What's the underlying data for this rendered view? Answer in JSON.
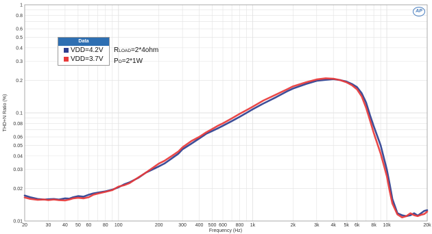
{
  "chart_data": {
    "type": "line",
    "title": "",
    "xlabel": "Frequency (Hz)",
    "ylabel": "THD+N Ratio (%)",
    "x_scale": "log",
    "y_scale": "log",
    "xlim": [
      20,
      20000
    ],
    "ylim": [
      0.01,
      1
    ],
    "grid": true,
    "legend_title": "Data",
    "legend_position": "top-left",
    "x_ticks": [
      {
        "value": 20,
        "label": "20"
      },
      {
        "value": 30,
        "label": "30"
      },
      {
        "value": 40,
        "label": "40"
      },
      {
        "value": 50,
        "label": "50"
      },
      {
        "value": 60,
        "label": "60"
      },
      {
        "value": 80,
        "label": "80"
      },
      {
        "value": 100,
        "label": "100"
      },
      {
        "value": 200,
        "label": "200"
      },
      {
        "value": 300,
        "label": "300"
      },
      {
        "value": 400,
        "label": "400"
      },
      {
        "value": 500,
        "label": "500"
      },
      {
        "value": 600,
        "label": "600"
      },
      {
        "value": 800,
        "label": "800"
      },
      {
        "value": 1000,
        "label": "1k"
      },
      {
        "value": 2000,
        "label": "2k"
      },
      {
        "value": 3000,
        "label": "3k"
      },
      {
        "value": 4000,
        "label": "4k"
      },
      {
        "value": 5000,
        "label": "5k"
      },
      {
        "value": 6000,
        "label": "6k"
      },
      {
        "value": 8000,
        "label": "8k"
      },
      {
        "value": 10000,
        "label": "10k"
      },
      {
        "value": 20000,
        "label": "20k"
      }
    ],
    "y_ticks": [
      {
        "value": 1,
        "label": "1"
      },
      {
        "value": 0.8,
        "label": "0.8"
      },
      {
        "value": 0.6,
        "label": "0.6"
      },
      {
        "value": 0.5,
        "label": "0.5"
      },
      {
        "value": 0.4,
        "label": "0.4"
      },
      {
        "value": 0.3,
        "label": "0.3"
      },
      {
        "value": 0.2,
        "label": "0.2"
      },
      {
        "value": 0.1,
        "label": "0.1"
      },
      {
        "value": 0.08,
        "label": "0.08"
      },
      {
        "value": 0.06,
        "label": "0.06"
      },
      {
        "value": 0.05,
        "label": "0.05"
      },
      {
        "value": 0.04,
        "label": "0.04"
      },
      {
        "value": 0.03,
        "label": "0.03"
      },
      {
        "value": 0.02,
        "label": "0.02"
      },
      {
        "value": 0.01,
        "label": "0.01"
      }
    ],
    "series": [
      {
        "name": "VDD=4.2V",
        "color": "#2e3f8f",
        "x": [
          20,
          22,
          25,
          28,
          30,
          33,
          36,
          40,
          43,
          46,
          50,
          55,
          60,
          65,
          70,
          80,
          90,
          100,
          110,
          120,
          140,
          160,
          180,
          200,
          220,
          250,
          280,
          300,
          350,
          400,
          450,
          500,
          550,
          600,
          700,
          800,
          900,
          1000,
          1200,
          1500,
          1800,
          2000,
          2500,
          3000,
          3500,
          4000,
          4500,
          5000,
          5500,
          6000,
          6500,
          7000,
          7500,
          8000,
          9000,
          10000,
          10500,
          11000,
          12000,
          13000,
          14000,
          15000,
          16000,
          17000,
          18000,
          19000,
          20000
        ],
        "y": [
          0.0172,
          0.0166,
          0.016,
          0.0158,
          0.0159,
          0.016,
          0.0158,
          0.0162,
          0.0161,
          0.0166,
          0.017,
          0.0168,
          0.0175,
          0.018,
          0.0183,
          0.0188,
          0.0195,
          0.0205,
          0.0218,
          0.0227,
          0.025,
          0.028,
          0.03,
          0.032,
          0.034,
          0.038,
          0.042,
          0.046,
          0.052,
          0.058,
          0.064,
          0.068,
          0.072,
          0.076,
          0.084,
          0.092,
          0.1,
          0.108,
          0.122,
          0.14,
          0.158,
          0.168,
          0.185,
          0.198,
          0.202,
          0.205,
          0.201,
          0.195,
          0.185,
          0.173,
          0.152,
          0.125,
          0.095,
          0.075,
          0.05,
          0.03,
          0.022,
          0.016,
          0.0118,
          0.0113,
          0.0111,
          0.0113,
          0.0118,
          0.0112,
          0.0118,
          0.0124,
          0.0126
        ]
      },
      {
        "name": "VDD=3.7V",
        "color": "#e83a3a",
        "x": [
          20,
          22,
          25,
          28,
          30,
          33,
          36,
          40,
          43,
          46,
          50,
          55,
          60,
          65,
          70,
          80,
          90,
          100,
          110,
          120,
          140,
          160,
          180,
          200,
          220,
          250,
          280,
          300,
          350,
          400,
          450,
          500,
          550,
          600,
          700,
          800,
          900,
          1000,
          1200,
          1500,
          1800,
          2000,
          2500,
          3000,
          3500,
          4000,
          4500,
          5000,
          5500,
          6000,
          6500,
          7000,
          7500,
          8000,
          9000,
          10000,
          10500,
          11000,
          12000,
          13000,
          14000,
          15000,
          16000,
          17000,
          18000,
          19000,
          20000
        ],
        "y": [
          0.0165,
          0.016,
          0.0157,
          0.0158,
          0.0156,
          0.0158,
          0.0156,
          0.0155,
          0.0158,
          0.0162,
          0.0164,
          0.0162,
          0.0166,
          0.0175,
          0.0179,
          0.0186,
          0.0193,
          0.0208,
          0.0214,
          0.0223,
          0.0252,
          0.028,
          0.031,
          0.034,
          0.036,
          0.04,
          0.044,
          0.048,
          0.055,
          0.06,
          0.066,
          0.071,
          0.076,
          0.08,
          0.089,
          0.098,
          0.106,
          0.114,
          0.13,
          0.148,
          0.165,
          0.176,
          0.192,
          0.204,
          0.209,
          0.207,
          0.201,
          0.192,
          0.18,
          0.165,
          0.142,
          0.112,
          0.085,
          0.065,
          0.042,
          0.026,
          0.019,
          0.0145,
          0.0115,
          0.0108,
          0.0111,
          0.0118,
          0.0113,
          0.0111,
          0.0114,
          0.0116,
          0.0122
        ]
      }
    ]
  },
  "annotations": {
    "load_main": "R",
    "load_sub": "LOAD",
    "load_value": "=2*4ohm",
    "power_main": "P",
    "power_sub": "O",
    "power_value": "=2*1W"
  },
  "logo_text": "AP",
  "colors": {
    "background": "#ffffff",
    "grid": "#e2e2e2",
    "axis": "#9a9a9a",
    "legend_header": "#2e6fb2"
  }
}
